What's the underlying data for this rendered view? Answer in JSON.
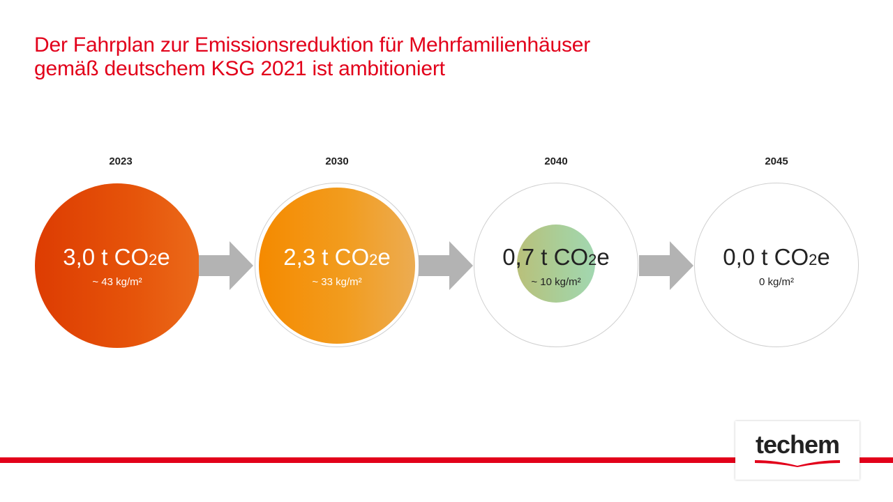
{
  "title": {
    "line1": "Der Fahrplan zur Emissionsreduktion für Mehrfamilienhäuser",
    "line2": "gemäß deutschem KSG 2021 ist ambitioniert"
  },
  "milestones": [
    {
      "year": "2023",
      "value": "3,0",
      "unit_prefix": "t CO",
      "unit_sub": "2",
      "unit_suffix": "e",
      "per_area": "~ 43 kg/m²",
      "color": "#e2460a"
    },
    {
      "year": "2030",
      "value": "2,3",
      "unit_prefix": "t CO",
      "unit_sub": "2",
      "unit_suffix": "e",
      "per_area": "~ 33 kg/m²",
      "color": "#f29c1e"
    },
    {
      "year": "2040",
      "value": "0,7",
      "unit_prefix": "t CO",
      "unit_sub": "2",
      "unit_suffix": "e",
      "per_area": "~ 10 kg/m²",
      "color": "#a9cf9c"
    },
    {
      "year": "2045",
      "value": "0,0",
      "unit_prefix": "t CO",
      "unit_sub": "2",
      "unit_suffix": "e",
      "per_area": "0 kg/m²",
      "color": "#ffffff"
    }
  ],
  "arrow_color": "#b3b3b3",
  "brand": {
    "name": "techem",
    "accent": "#e2001a"
  }
}
